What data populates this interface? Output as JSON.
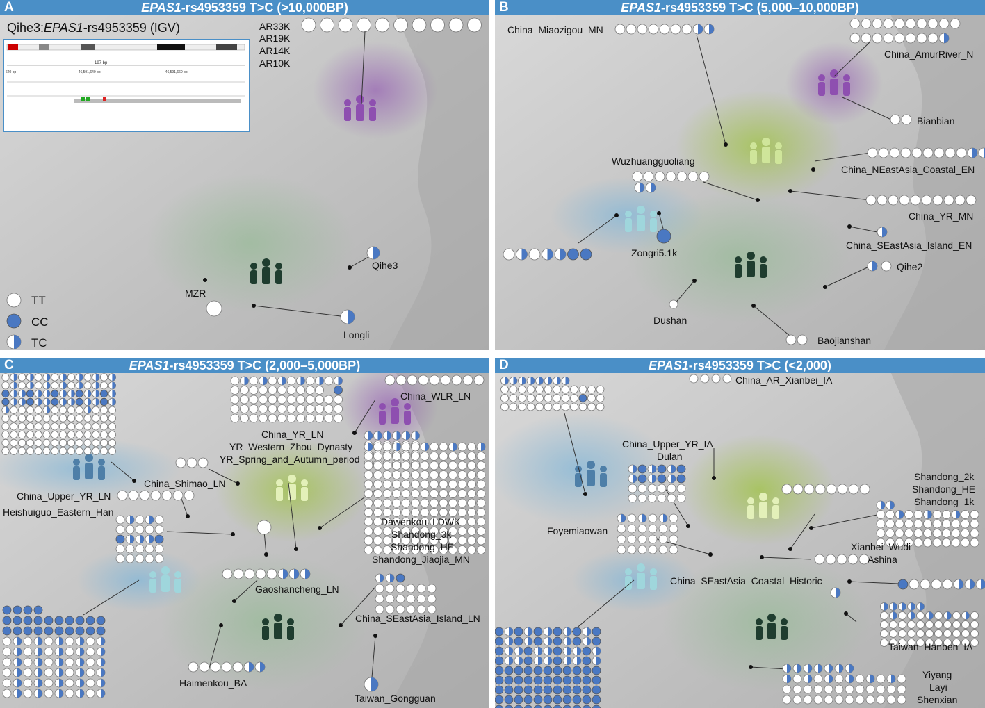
{
  "panels": [
    {
      "letter": "A",
      "gene": "EPAS1",
      "title_rest": "-rs4953359 T>C (>10,000BP)"
    },
    {
      "letter": "B",
      "gene": "EPAS1",
      "title_rest": "-rs4953359 T>C (5,000–10,000BP)"
    },
    {
      "letter": "C",
      "gene": "EPAS1",
      "title_rest": "-rs4953359 T>C (2,000–5,000BP)"
    },
    {
      "letter": "D",
      "gene": "EPAS1",
      "title_rest": "-rs4953359 T>C (<2,000)"
    }
  ],
  "legend": {
    "tt": "TT",
    "cc": "CC",
    "tc": "TC"
  },
  "colors": {
    "header": "#4a8fc7",
    "cc": "#4a78c2",
    "tt": "#ffffff",
    "purple": "#8e4fb0",
    "green": "#9cc23a",
    "blue": "#7fb6d9",
    "teal": "#6ec0c8",
    "darkgreen": "#1f3d2f"
  },
  "inset": {
    "prefix": "Qihe3:",
    "gene": "EPAS1",
    "suffix": "-rs4953359 (IGV)",
    "bp": "197 bp",
    "pos1": "-46,591,640 bp",
    "pos2": "-46,591,660 bp",
    "pos0": "620 bp"
  },
  "labels_a": [
    "AR33K",
    "AR19K",
    "AR14K",
    "AR10K",
    "Qihe3",
    "MZR",
    "Longli"
  ],
  "labels_b": [
    "China_Miaozigou_MN",
    "China_AmurRiver_N",
    "Bianbian",
    "Wuzhuangguoliang",
    "China_NEastAsia_Coastal_EN",
    "China_YR_MN",
    "Zongri5.1k",
    "China_SEastAsia_Island_EN",
    "Qihe2",
    "Dushan",
    "Baojianshan"
  ],
  "labels_c": [
    "China_WLR_LN",
    "China_YR_LN",
    "YR_Western_Zhou_Dynasty",
    "YR_Spring_and_Autumn_period",
    "China_Shimao_LN",
    "China_Upper_YR_LN",
    "Heishuiguo_Eastern_Han",
    "Dawenkou_LDWK",
    "Shandong_3k",
    "Shandong_HE",
    "Shandong_Jiaojia_MN",
    "Gaoshancheng_LN",
    "China_SEastAsia_Island_LN",
    "Haimenkou_BA",
    "Taiwan_Gongguan"
  ],
  "labels_d": [
    "China_AR_Xianbei_IA",
    "China_Upper_YR_IA",
    "Dulan",
    "Shandong_2k",
    "Shandong_HE",
    "Shandong_1k",
    "Foyemiaowan",
    "Xianbei_Wudi",
    "Ashina",
    "China_SEastAsia_Coastal_Historic",
    "Taiwan_Hanben_IA",
    "Yiyang",
    "Layi",
    "Shenxian"
  ]
}
